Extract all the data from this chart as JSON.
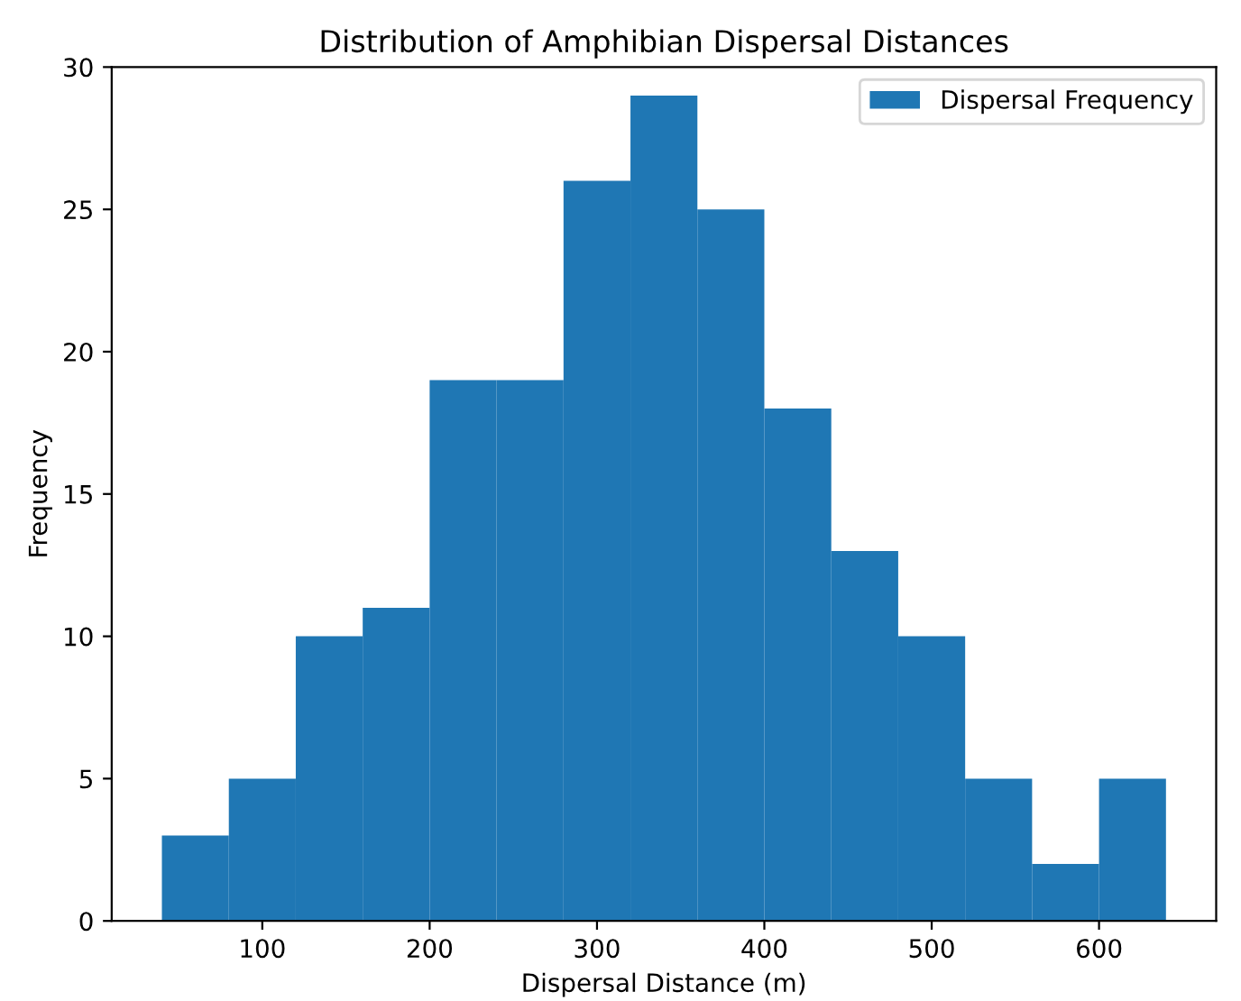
{
  "chart_data": {
    "type": "histogram",
    "title": "Distribution of Amphibian Dispersal Distances",
    "xlabel": "Dispersal Distance (m)",
    "ylabel": "Frequency",
    "bins": [
      40,
      80,
      120,
      160,
      200,
      240,
      280,
      320,
      360,
      400,
      440,
      480,
      520,
      560,
      600,
      640
    ],
    "series": [
      {
        "name": "Dispersal Frequency",
        "color": "#1f77b4",
        "values": [
          3,
          5,
          10,
          11,
          19,
          19,
          26,
          29,
          25,
          18,
          13,
          10,
          5,
          2,
          5
        ]
      }
    ],
    "xlim": [
      10,
      670
    ],
    "ylim": [
      0,
      30
    ],
    "xticks": [
      100,
      200,
      300,
      400,
      500,
      600
    ],
    "yticks": [
      0,
      5,
      10,
      15,
      20,
      25,
      30
    ],
    "legend": "upper right",
    "grid": false
  }
}
